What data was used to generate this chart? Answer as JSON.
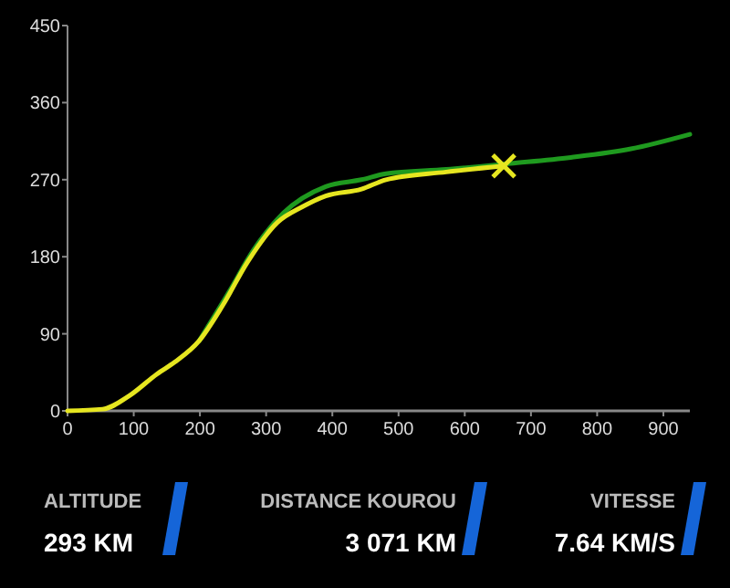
{
  "chart_data": {
    "type": "line",
    "xlim": [
      0,
      940
    ],
    "ylim": [
      0,
      450
    ],
    "xticks": [
      0,
      100,
      200,
      300,
      400,
      500,
      600,
      700,
      800,
      900
    ],
    "yticks": [
      0,
      90,
      180,
      270,
      360,
      450
    ],
    "grid": false,
    "line_style": "solid",
    "series": [
      {
        "color": "#1f9a1f",
        "marker": "none",
        "x": [
          199,
          244,
          281,
          326,
          390,
          444,
          481,
          572,
          669,
          760,
          851,
          940
        ],
        "values": [
          82,
          139,
          188,
          231,
          262,
          270,
          277,
          282,
          289,
          296,
          306,
          323
        ]
      },
      {
        "color": "#e6e620",
        "marker": "none",
        "x": [
          0,
          53,
          94,
          135,
          162,
          199,
          235,
          272,
          317,
          354,
          390,
          444,
          481,
          572,
          659
        ],
        "values": [
          0,
          2,
          18,
          43,
          57,
          82,
          124,
          174,
          220,
          238,
          251,
          259,
          270,
          279,
          286
        ]
      },
      {
        "type": "scatter",
        "color": "#e6e620",
        "marker": "cross",
        "x": [
          659
        ],
        "values": [
          286
        ]
      }
    ],
    "annotations": [
      "ALTITUDE",
      "293 KM",
      "DISTANCE KOUROU",
      "3 071 KM",
      "VITESSE",
      "7.64 KM/S"
    ]
  }
}
